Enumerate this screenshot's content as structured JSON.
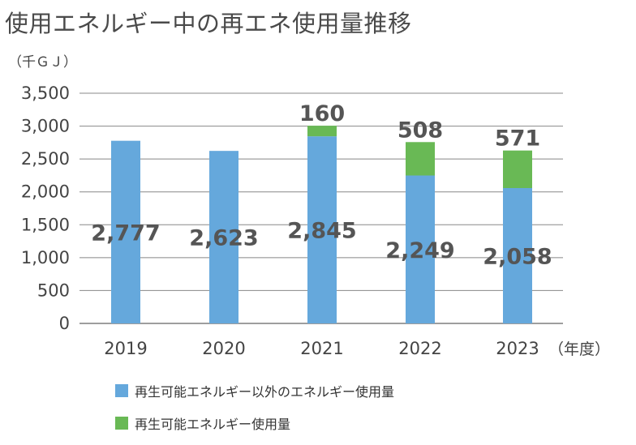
{
  "title": "使用エネルギー中の再エネ使用量推移",
  "unit_label": "（千ＧＪ）",
  "x_unit_label": "（年度）",
  "colors": {
    "non_renewable": "#65a8dc",
    "renewable": "#69b955",
    "grid": "#888888",
    "axis": "#7f7f7f"
  },
  "legend": [
    {
      "label": "再生可能エネルギー以外のエネルギー使用量",
      "color": "#65a8dc"
    },
    {
      "label": "再生可能エネルギー使用量",
      "color": "#69b955"
    }
  ],
  "chart_data": {
    "type": "bar",
    "stacked": true,
    "categories": [
      "2019",
      "2020",
      "2021",
      "2022",
      "2023"
    ],
    "series": [
      {
        "name": "再生可能エネルギー以外のエネルギー使用量",
        "values": [
          2777,
          2623,
          2845,
          2249,
          2058
        ]
      },
      {
        "name": "再生可能エネルギー使用量",
        "values": [
          0,
          0,
          160,
          508,
          571
        ]
      }
    ],
    "data_labels": {
      "non_renewable": [
        "2,777",
        "2,623",
        "2,845",
        "2,249",
        "2,058"
      ],
      "renewable": [
        "",
        "",
        "160",
        "508",
        "571"
      ]
    },
    "y_ticks": [
      0,
      500,
      1000,
      1500,
      2000,
      2500,
      3000,
      3500
    ],
    "y_tick_labels": [
      "0",
      "500",
      "1,000",
      "1,500",
      "2,000",
      "2,500",
      "3,000",
      "3,500"
    ],
    "ylim": [
      0,
      3500
    ],
    "grid": true,
    "legend_position": "bottom"
  }
}
